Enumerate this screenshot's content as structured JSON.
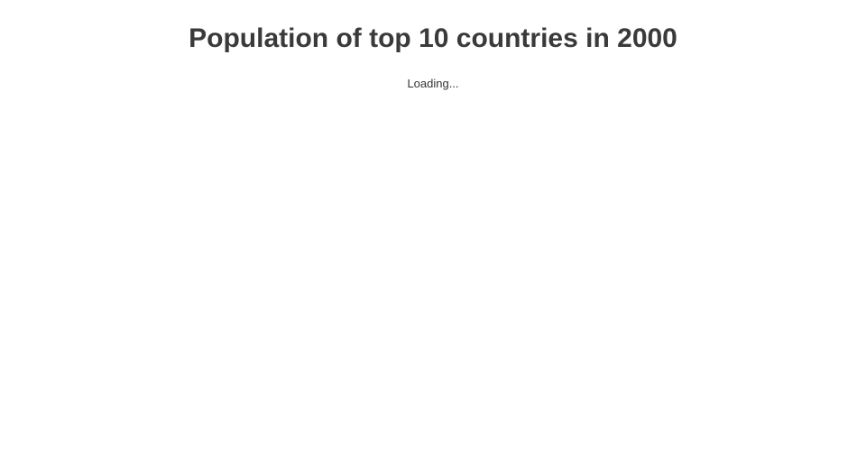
{
  "page": {
    "title": "Population of top 10 countries in 2000",
    "loading_text": "Loading..."
  },
  "colors": {
    "background": "#ffffff",
    "title_text": "#3a3a3a",
    "loading_text": "#333333"
  },
  "chart_data": {
    "type": "unknown",
    "title": "Population of top 10 countries in 2000",
    "status": "loading",
    "categories": [],
    "series": [],
    "notes_visible_on_screen": "Only the chart title and a 'Loading...' message are rendered; no axes, data points, or legend are visible."
  }
}
